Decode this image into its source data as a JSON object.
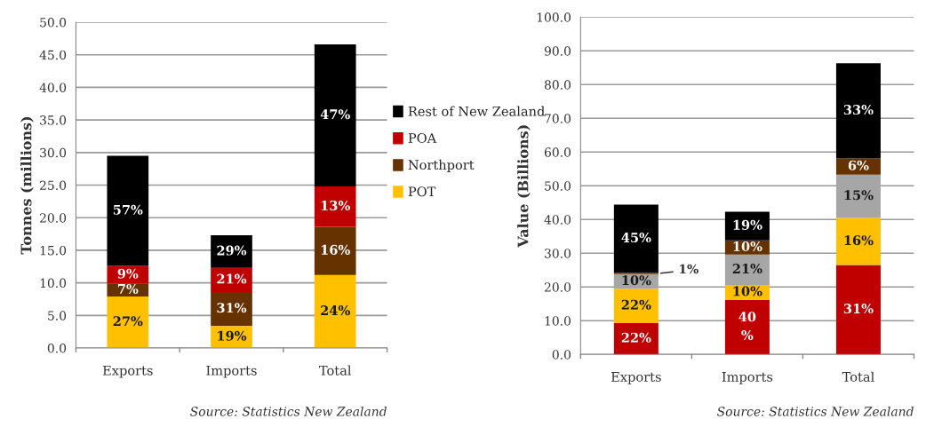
{
  "chart_data": [
    {
      "type": "bar",
      "stacked": true,
      "ylabel": "Tonnes (millions)",
      "categories": [
        "Exports",
        "Imports",
        "Total"
      ],
      "ylim": [
        0,
        50
      ],
      "yticks": [
        {
          "value": 0,
          "label": "0.0"
        },
        {
          "value": 5,
          "label": "5.0"
        },
        {
          "value": 10,
          "label": "10.0"
        },
        {
          "value": 15,
          "label": "15.0"
        },
        {
          "value": 20,
          "label": "20.0"
        },
        {
          "value": 25,
          "label": "25.0"
        },
        {
          "value": 30,
          "label": "30.0"
        },
        {
          "value": 35,
          "label": "35.0"
        },
        {
          "value": 40,
          "label": "40.0"
        },
        {
          "value": 45,
          "label": "45.0"
        },
        {
          "value": 50,
          "label": "50.0"
        }
      ],
      "grid": "y",
      "legend": "right",
      "series": [
        {
          "name": "POT",
          "color": "#ffc000",
          "values": [
            7.9,
            3.4,
            11.2
          ]
        },
        {
          "name": "Northport",
          "color": "#663300",
          "values": [
            2.0,
            5.2,
            7.4
          ]
        },
        {
          "name": "POA",
          "color": "#c00000",
          "values": [
            2.7,
            3.7,
            6.2
          ]
        },
        {
          "name": "Rest of New Zealand",
          "color": "#000000",
          "values": [
            16.9,
            5.0,
            21.8
          ]
        }
      ],
      "annotations": [
        "27%",
        "7%",
        "9%",
        "57%",
        "19%",
        "31%",
        "21%",
        "29%",
        "24%",
        "16%",
        "13%",
        "47%",
        "Source: Statistics New Zealand"
      ]
    },
    {
      "type": "bar",
      "stacked": true,
      "ylabel": "Value (Billions)",
      "categories": [
        "Exports",
        "Imports",
        "Total"
      ],
      "ylim": [
        0,
        100
      ],
      "yticks": [
        {
          "value": 0,
          "label": "0.0"
        },
        {
          "value": 10,
          "label": "10.0"
        },
        {
          "value": 20,
          "label": "20.0"
        },
        {
          "value": 30,
          "label": "30.0"
        },
        {
          "value": 40,
          "label": "40.0"
        },
        {
          "value": 50,
          "label": "50.0"
        },
        {
          "value": 60,
          "label": "60.0"
        },
        {
          "value": 70,
          "label": "70.0"
        },
        {
          "value": 80,
          "label": "80.0"
        },
        {
          "value": 90,
          "label": "90.0"
        },
        {
          "value": 100,
          "label": "100.0"
        }
      ],
      "grid": "y",
      "legend": false,
      "series": [
        {
          "color": "#c00000",
          "values": [
            9.3,
            16.2,
            26.5
          ]
        },
        {
          "color": "#ffc000",
          "values": [
            10.2,
            4.4,
            14.0
          ]
        },
        {
          "color": "#a6a6a6",
          "values": [
            4.3,
            9.0,
            12.8
          ]
        },
        {
          "color": "#663300",
          "values": [
            0.4,
            4.2,
            4.8
          ]
        },
        {
          "color": "#000000",
          "values": [
            20.2,
            8.5,
            28.2
          ]
        }
      ],
      "annotations": [
        "22%",
        "22%",
        "10%",
        "1%",
        "45%",
        "40\n%",
        "10%",
        "21%",
        "10%",
        "19%",
        "31%",
        "16%",
        "15%",
        "6%",
        "33%",
        "Source: Statistics New Zealand"
      ]
    }
  ]
}
